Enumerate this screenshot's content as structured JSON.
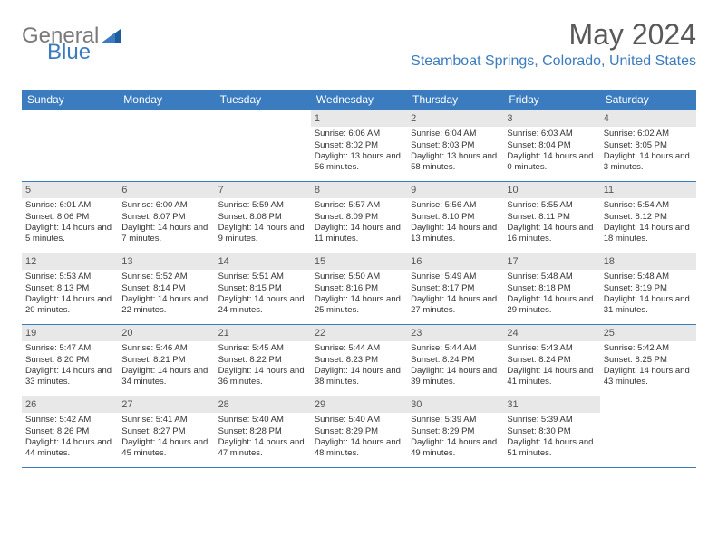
{
  "logo": {
    "text_general": "General",
    "text_blue": "Blue",
    "triangle_color": "#3b7bbf"
  },
  "header": {
    "month_title": "May 2024",
    "location": "Steamboat Springs, Colorado, United States"
  },
  "colors": {
    "header_bar": "#3b7bbf",
    "day_number_bg": "#e8e8e8",
    "text_gray": "#595959",
    "accent_blue": "#3b7bbf"
  },
  "weekdays": [
    "Sunday",
    "Monday",
    "Tuesday",
    "Wednesday",
    "Thursday",
    "Friday",
    "Saturday"
  ],
  "weeks": [
    [
      null,
      null,
      null,
      {
        "n": "1",
        "sunrise": "Sunrise: 6:06 AM",
        "sunset": "Sunset: 8:02 PM",
        "daylight": "Daylight: 13 hours and 56 minutes."
      },
      {
        "n": "2",
        "sunrise": "Sunrise: 6:04 AM",
        "sunset": "Sunset: 8:03 PM",
        "daylight": "Daylight: 13 hours and 58 minutes."
      },
      {
        "n": "3",
        "sunrise": "Sunrise: 6:03 AM",
        "sunset": "Sunset: 8:04 PM",
        "daylight": "Daylight: 14 hours and 0 minutes."
      },
      {
        "n": "4",
        "sunrise": "Sunrise: 6:02 AM",
        "sunset": "Sunset: 8:05 PM",
        "daylight": "Daylight: 14 hours and 3 minutes."
      }
    ],
    [
      {
        "n": "5",
        "sunrise": "Sunrise: 6:01 AM",
        "sunset": "Sunset: 8:06 PM",
        "daylight": "Daylight: 14 hours and 5 minutes."
      },
      {
        "n": "6",
        "sunrise": "Sunrise: 6:00 AM",
        "sunset": "Sunset: 8:07 PM",
        "daylight": "Daylight: 14 hours and 7 minutes."
      },
      {
        "n": "7",
        "sunrise": "Sunrise: 5:59 AM",
        "sunset": "Sunset: 8:08 PM",
        "daylight": "Daylight: 14 hours and 9 minutes."
      },
      {
        "n": "8",
        "sunrise": "Sunrise: 5:57 AM",
        "sunset": "Sunset: 8:09 PM",
        "daylight": "Daylight: 14 hours and 11 minutes."
      },
      {
        "n": "9",
        "sunrise": "Sunrise: 5:56 AM",
        "sunset": "Sunset: 8:10 PM",
        "daylight": "Daylight: 14 hours and 13 minutes."
      },
      {
        "n": "10",
        "sunrise": "Sunrise: 5:55 AM",
        "sunset": "Sunset: 8:11 PM",
        "daylight": "Daylight: 14 hours and 16 minutes."
      },
      {
        "n": "11",
        "sunrise": "Sunrise: 5:54 AM",
        "sunset": "Sunset: 8:12 PM",
        "daylight": "Daylight: 14 hours and 18 minutes."
      }
    ],
    [
      {
        "n": "12",
        "sunrise": "Sunrise: 5:53 AM",
        "sunset": "Sunset: 8:13 PM",
        "daylight": "Daylight: 14 hours and 20 minutes."
      },
      {
        "n": "13",
        "sunrise": "Sunrise: 5:52 AM",
        "sunset": "Sunset: 8:14 PM",
        "daylight": "Daylight: 14 hours and 22 minutes."
      },
      {
        "n": "14",
        "sunrise": "Sunrise: 5:51 AM",
        "sunset": "Sunset: 8:15 PM",
        "daylight": "Daylight: 14 hours and 24 minutes."
      },
      {
        "n": "15",
        "sunrise": "Sunrise: 5:50 AM",
        "sunset": "Sunset: 8:16 PM",
        "daylight": "Daylight: 14 hours and 25 minutes."
      },
      {
        "n": "16",
        "sunrise": "Sunrise: 5:49 AM",
        "sunset": "Sunset: 8:17 PM",
        "daylight": "Daylight: 14 hours and 27 minutes."
      },
      {
        "n": "17",
        "sunrise": "Sunrise: 5:48 AM",
        "sunset": "Sunset: 8:18 PM",
        "daylight": "Daylight: 14 hours and 29 minutes."
      },
      {
        "n": "18",
        "sunrise": "Sunrise: 5:48 AM",
        "sunset": "Sunset: 8:19 PM",
        "daylight": "Daylight: 14 hours and 31 minutes."
      }
    ],
    [
      {
        "n": "19",
        "sunrise": "Sunrise: 5:47 AM",
        "sunset": "Sunset: 8:20 PM",
        "daylight": "Daylight: 14 hours and 33 minutes."
      },
      {
        "n": "20",
        "sunrise": "Sunrise: 5:46 AM",
        "sunset": "Sunset: 8:21 PM",
        "daylight": "Daylight: 14 hours and 34 minutes."
      },
      {
        "n": "21",
        "sunrise": "Sunrise: 5:45 AM",
        "sunset": "Sunset: 8:22 PM",
        "daylight": "Daylight: 14 hours and 36 minutes."
      },
      {
        "n": "22",
        "sunrise": "Sunrise: 5:44 AM",
        "sunset": "Sunset: 8:23 PM",
        "daylight": "Daylight: 14 hours and 38 minutes."
      },
      {
        "n": "23",
        "sunrise": "Sunrise: 5:44 AM",
        "sunset": "Sunset: 8:24 PM",
        "daylight": "Daylight: 14 hours and 39 minutes."
      },
      {
        "n": "24",
        "sunrise": "Sunrise: 5:43 AM",
        "sunset": "Sunset: 8:24 PM",
        "daylight": "Daylight: 14 hours and 41 minutes."
      },
      {
        "n": "25",
        "sunrise": "Sunrise: 5:42 AM",
        "sunset": "Sunset: 8:25 PM",
        "daylight": "Daylight: 14 hours and 43 minutes."
      }
    ],
    [
      {
        "n": "26",
        "sunrise": "Sunrise: 5:42 AM",
        "sunset": "Sunset: 8:26 PM",
        "daylight": "Daylight: 14 hours and 44 minutes."
      },
      {
        "n": "27",
        "sunrise": "Sunrise: 5:41 AM",
        "sunset": "Sunset: 8:27 PM",
        "daylight": "Daylight: 14 hours and 45 minutes."
      },
      {
        "n": "28",
        "sunrise": "Sunrise: 5:40 AM",
        "sunset": "Sunset: 8:28 PM",
        "daylight": "Daylight: 14 hours and 47 minutes."
      },
      {
        "n": "29",
        "sunrise": "Sunrise: 5:40 AM",
        "sunset": "Sunset: 8:29 PM",
        "daylight": "Daylight: 14 hours and 48 minutes."
      },
      {
        "n": "30",
        "sunrise": "Sunrise: 5:39 AM",
        "sunset": "Sunset: 8:29 PM",
        "daylight": "Daylight: 14 hours and 49 minutes."
      },
      {
        "n": "31",
        "sunrise": "Sunrise: 5:39 AM",
        "sunset": "Sunset: 8:30 PM",
        "daylight": "Daylight: 14 hours and 51 minutes."
      },
      null
    ]
  ]
}
